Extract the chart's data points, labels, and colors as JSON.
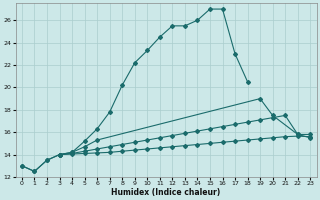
{
  "xlabel": "Humidex (Indice chaleur)",
  "bg_color": "#cce8e8",
  "grid_color": "#aacece",
  "line_color": "#1a6b6b",
  "xlim": [
    -0.5,
    23.5
  ],
  "ylim": [
    12,
    27.5
  ],
  "xticks": [
    0,
    1,
    2,
    3,
    4,
    5,
    6,
    7,
    8,
    9,
    10,
    11,
    12,
    13,
    14,
    15,
    16,
    17,
    18,
    19,
    20,
    21,
    22,
    23
  ],
  "yticks": [
    12,
    14,
    16,
    18,
    20,
    22,
    24,
    26
  ],
  "line1_x": [
    0,
    1,
    2,
    3,
    4,
    5,
    6,
    7,
    8,
    9,
    10,
    11,
    12,
    13,
    14,
    15,
    16,
    17,
    18
  ],
  "line1_y": [
    13.0,
    12.5,
    13.5,
    14.0,
    14.2,
    15.2,
    16.3,
    17.8,
    20.2,
    22.2,
    23.3,
    24.5,
    25.5,
    25.5,
    26.0,
    27.0,
    27.0,
    23.0,
    20.5
  ],
  "line2_x": [
    0,
    1,
    2,
    3,
    4,
    5,
    6,
    19,
    20,
    22,
    23
  ],
  "line2_y": [
    13.0,
    12.5,
    13.5,
    14.0,
    14.2,
    14.7,
    15.3,
    19.0,
    17.5,
    15.8,
    15.8
  ],
  "line3_x": [
    3,
    4,
    5,
    6,
    7,
    8,
    9,
    10,
    11,
    12,
    13,
    14,
    15,
    16,
    17,
    18,
    19,
    20,
    21,
    22,
    23
  ],
  "line3_y": [
    14.0,
    14.1,
    14.3,
    14.5,
    14.7,
    14.9,
    15.1,
    15.3,
    15.5,
    15.7,
    15.9,
    16.1,
    16.3,
    16.5,
    16.7,
    16.9,
    17.1,
    17.3,
    17.5,
    15.8,
    15.5
  ],
  "line4_x": [
    3,
    4,
    5,
    6,
    7,
    8,
    9,
    10,
    11,
    12,
    13,
    14,
    15,
    16,
    17,
    18,
    19,
    20,
    21,
    22,
    23
  ],
  "line4_y": [
    14.0,
    14.05,
    14.1,
    14.15,
    14.2,
    14.3,
    14.4,
    14.5,
    14.6,
    14.7,
    14.8,
    14.9,
    15.0,
    15.1,
    15.2,
    15.3,
    15.4,
    15.5,
    15.6,
    15.65,
    15.6
  ]
}
